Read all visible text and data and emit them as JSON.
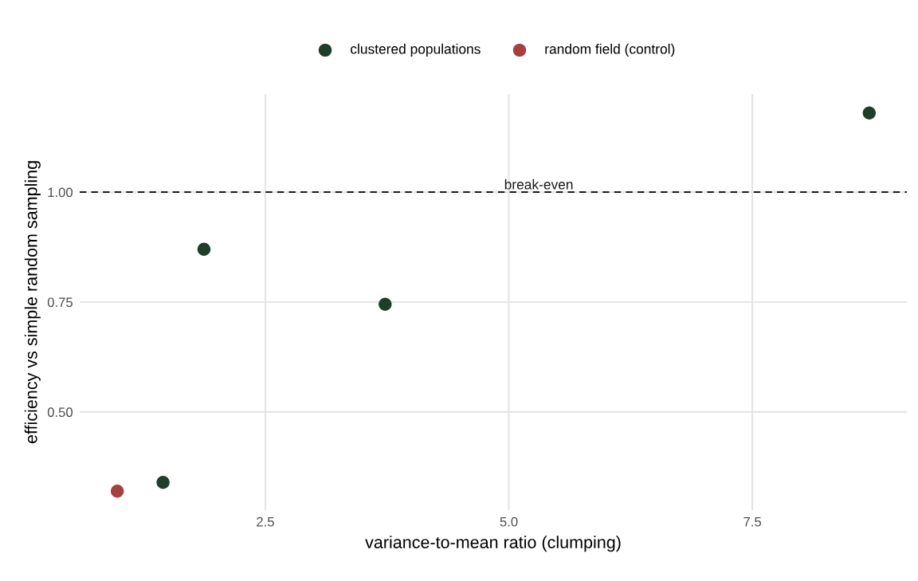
{
  "chart_data": {
    "type": "scatter",
    "xlabel": "variance-to-mean ratio (clumping)",
    "ylabel": "efficiency vs simple random sampling",
    "series": [
      {
        "name": "clustered populations",
        "color": "#1e3d2b",
        "x": [
          1.45,
          1.87,
          3.73,
          8.7
        ],
        "values": [
          0.34,
          0.87,
          0.745,
          1.18
        ]
      },
      {
        "name": "random field (control)",
        "color": "#a63f3f",
        "x": [
          0.98
        ],
        "values": [
          0.32
        ]
      }
    ],
    "ref_lines": [
      {
        "axis": "y",
        "value": 1.0,
        "label": "break-even",
        "color": "#1a1a1a",
        "line_style": "dashed"
      }
    ],
    "xlim": [
      0.594,
      9.086
    ],
    "ylim": [
      0.277,
      1.223
    ],
    "xticks": [
      2.5,
      {
        "value": 5,
        "label": "5.0"
      },
      7.5
    ],
    "yticks": [
      {
        "value": 0.5,
        "label": "0.50"
      },
      {
        "value": 0.75,
        "label": "0.75"
      },
      {
        "value": 1,
        "label": "1.00"
      }
    ],
    "grid": true,
    "legend": "top",
    "marker": "circle"
  }
}
